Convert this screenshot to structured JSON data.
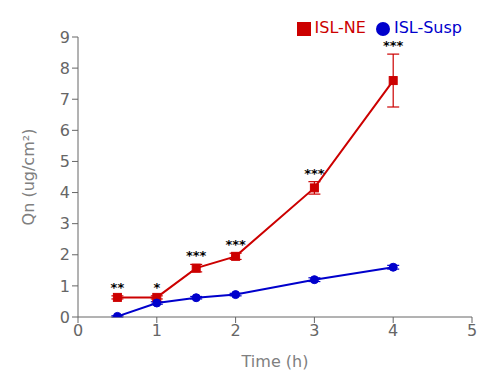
{
  "chart_data": {
    "type": "line",
    "xlabel": "Time (h)",
    "ylabel": "Qn (ug/cm²)",
    "x": [
      0.5,
      1.0,
      1.5,
      2.0,
      3.0,
      4.0
    ],
    "series": [
      {
        "name": "ISL-NE",
        "color": "#cc0000",
        "marker": "square",
        "values": [
          0.63,
          0.63,
          1.57,
          1.95,
          4.15,
          7.6
        ],
        "errors": [
          0.05,
          0.05,
          0.12,
          0.1,
          0.2,
          0.85
        ],
        "annotations": [
          "**",
          "*",
          "***",
          "***",
          "***",
          "***"
        ]
      },
      {
        "name": "ISL-Susp",
        "color": "#0000cc",
        "marker": "circle",
        "values": [
          0.02,
          0.45,
          0.62,
          0.72,
          1.2,
          1.6
        ],
        "errors": [
          0.02,
          0.04,
          0.04,
          0.04,
          0.06,
          0.06
        ]
      }
    ],
    "xlim": [
      0,
      5
    ],
    "ylim": [
      0,
      9
    ],
    "xticks": [
      0,
      1,
      2,
      3,
      4,
      5
    ],
    "yticks": [
      0,
      1,
      2,
      3,
      4,
      5,
      6,
      7,
      8,
      9
    ],
    "legend": "upper right",
    "grid": false
  }
}
